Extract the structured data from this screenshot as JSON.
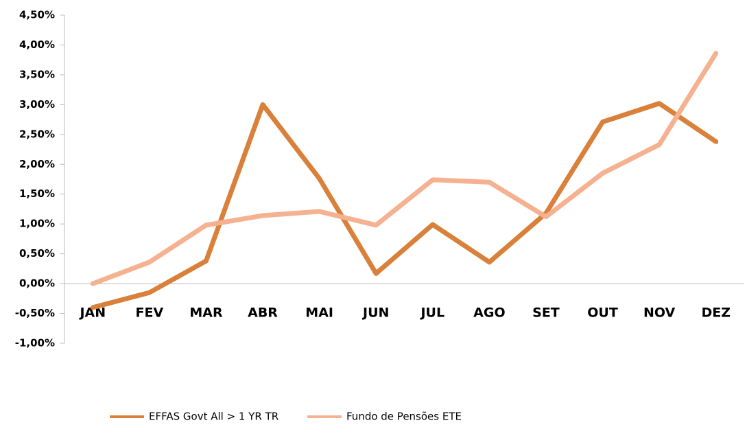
{
  "chart_data": {
    "type": "line",
    "categories": [
      "JAN",
      "FEV",
      "MAR",
      "ABR",
      "MAI",
      "JUN",
      "JUL",
      "AGO",
      "SET",
      "OUT",
      "NOV",
      "DEZ"
    ],
    "series": [
      {
        "name": "EFFAS Govt All > 1 YR TR",
        "color": "#d9803a",
        "values": [
          -0.4,
          -0.15,
          0.38,
          3.0,
          1.76,
          0.17,
          0.99,
          0.36,
          1.18,
          2.71,
          3.02,
          2.38
        ]
      },
      {
        "name": "Fundo de Pensões ETE",
        "color": "#f5b190",
        "values": [
          0.0,
          0.36,
          0.98,
          1.14,
          1.21,
          0.98,
          1.74,
          1.7,
          1.12,
          1.85,
          2.33,
          3.86
        ]
      }
    ],
    "ylim": [
      -1.0,
      4.5
    ],
    "yticks": [
      {
        "value": 4.5,
        "label": "4,50%"
      },
      {
        "value": 4.0,
        "label": "4,00%"
      },
      {
        "value": 3.5,
        "label": "3,50%"
      },
      {
        "value": 3.0,
        "label": "3,00%"
      },
      {
        "value": 2.5,
        "label": "2,50%"
      },
      {
        "value": 2.0,
        "label": "2,00%"
      },
      {
        "value": 1.5,
        "label": "1,50%"
      },
      {
        "value": 1.0,
        "label": "1,00%"
      },
      {
        "value": 0.5,
        "label": "0,50%"
      },
      {
        "value": 0.0,
        "label": "0,00%"
      },
      {
        "value": -0.5,
        "label": "-0,50%"
      },
      {
        "value": -1.0,
        "label": "-1,00%"
      }
    ],
    "legend": "bottom"
  }
}
